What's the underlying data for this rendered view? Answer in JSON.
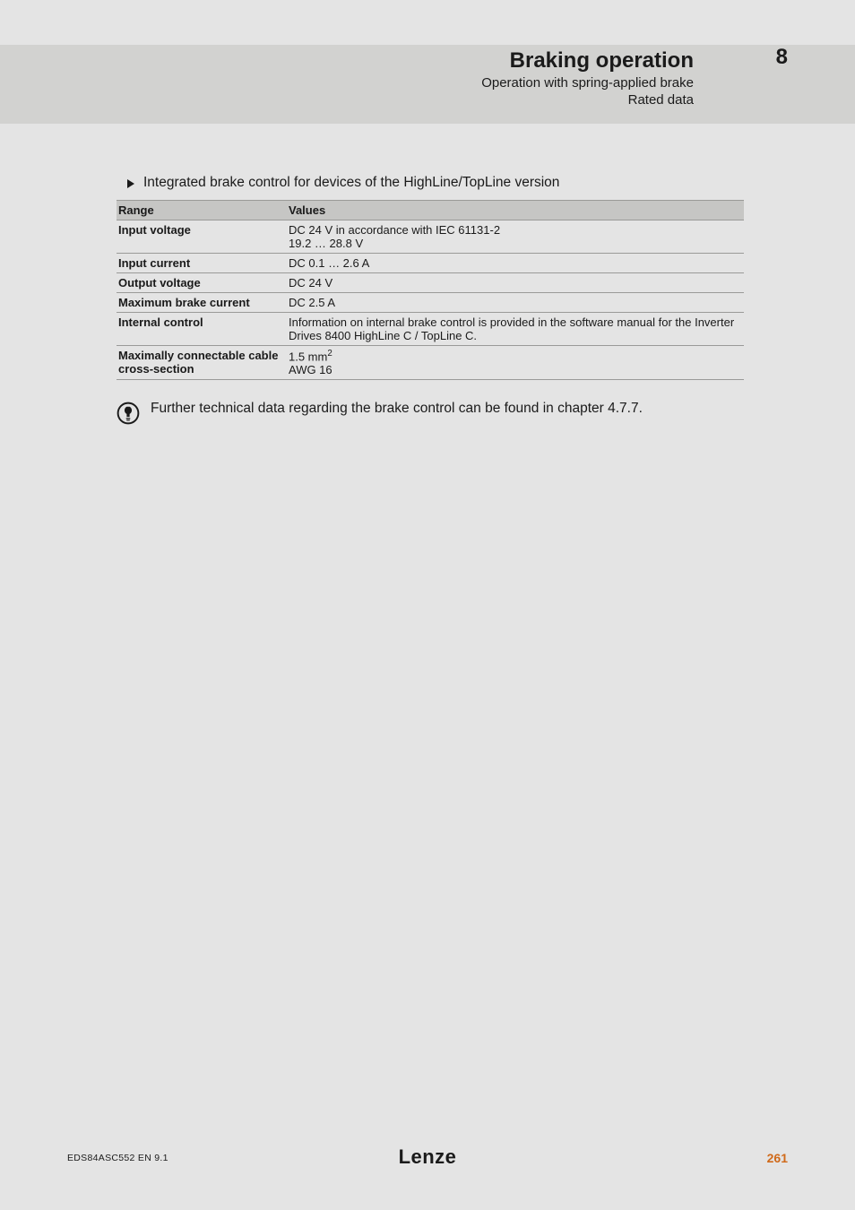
{
  "header": {
    "title": "Braking operation",
    "sub1": "Operation with spring-applied brake",
    "sub2": "Rated data",
    "chapter": "8"
  },
  "bullet": {
    "text": "Integrated brake control for devices of the HighLine/TopLine version"
  },
  "table": {
    "head_col1": "Range",
    "head_col2": "Values",
    "rows": [
      {
        "label": "Input voltage",
        "value": "DC 24 V in accordance with IEC 61131-2\n19.2 … 28.8 V"
      },
      {
        "label": "Input current",
        "value": "DC 0.1 … 2.6 A"
      },
      {
        "label": "Output voltage",
        "value": "DC 24 V"
      },
      {
        "label": "Maximum brake current",
        "value": "DC 2.5 A"
      },
      {
        "label": "Internal control",
        "value": "Information on internal brake control is provided in the software manual for the Inverter Drives 8400 HighLine C / TopLine C."
      },
      {
        "label": "Maximally connectable cable cross-section",
        "value": "1.5 mm²\nAWG 16"
      }
    ]
  },
  "note": {
    "text": "Further technical data regarding the brake control can be found in chapter 4.7.7."
  },
  "footer": {
    "left": "EDS84ASC552  EN  9.1",
    "logo": "Lenze",
    "page": "261"
  },
  "colors": {
    "page_bg": "#e4e4e4",
    "band_bg": "#d2d2d0",
    "table_head_bg": "#c6c6c4",
    "rule": "#9a9a98",
    "accent": "#d06a1a",
    "text": "#1a1a1a"
  }
}
